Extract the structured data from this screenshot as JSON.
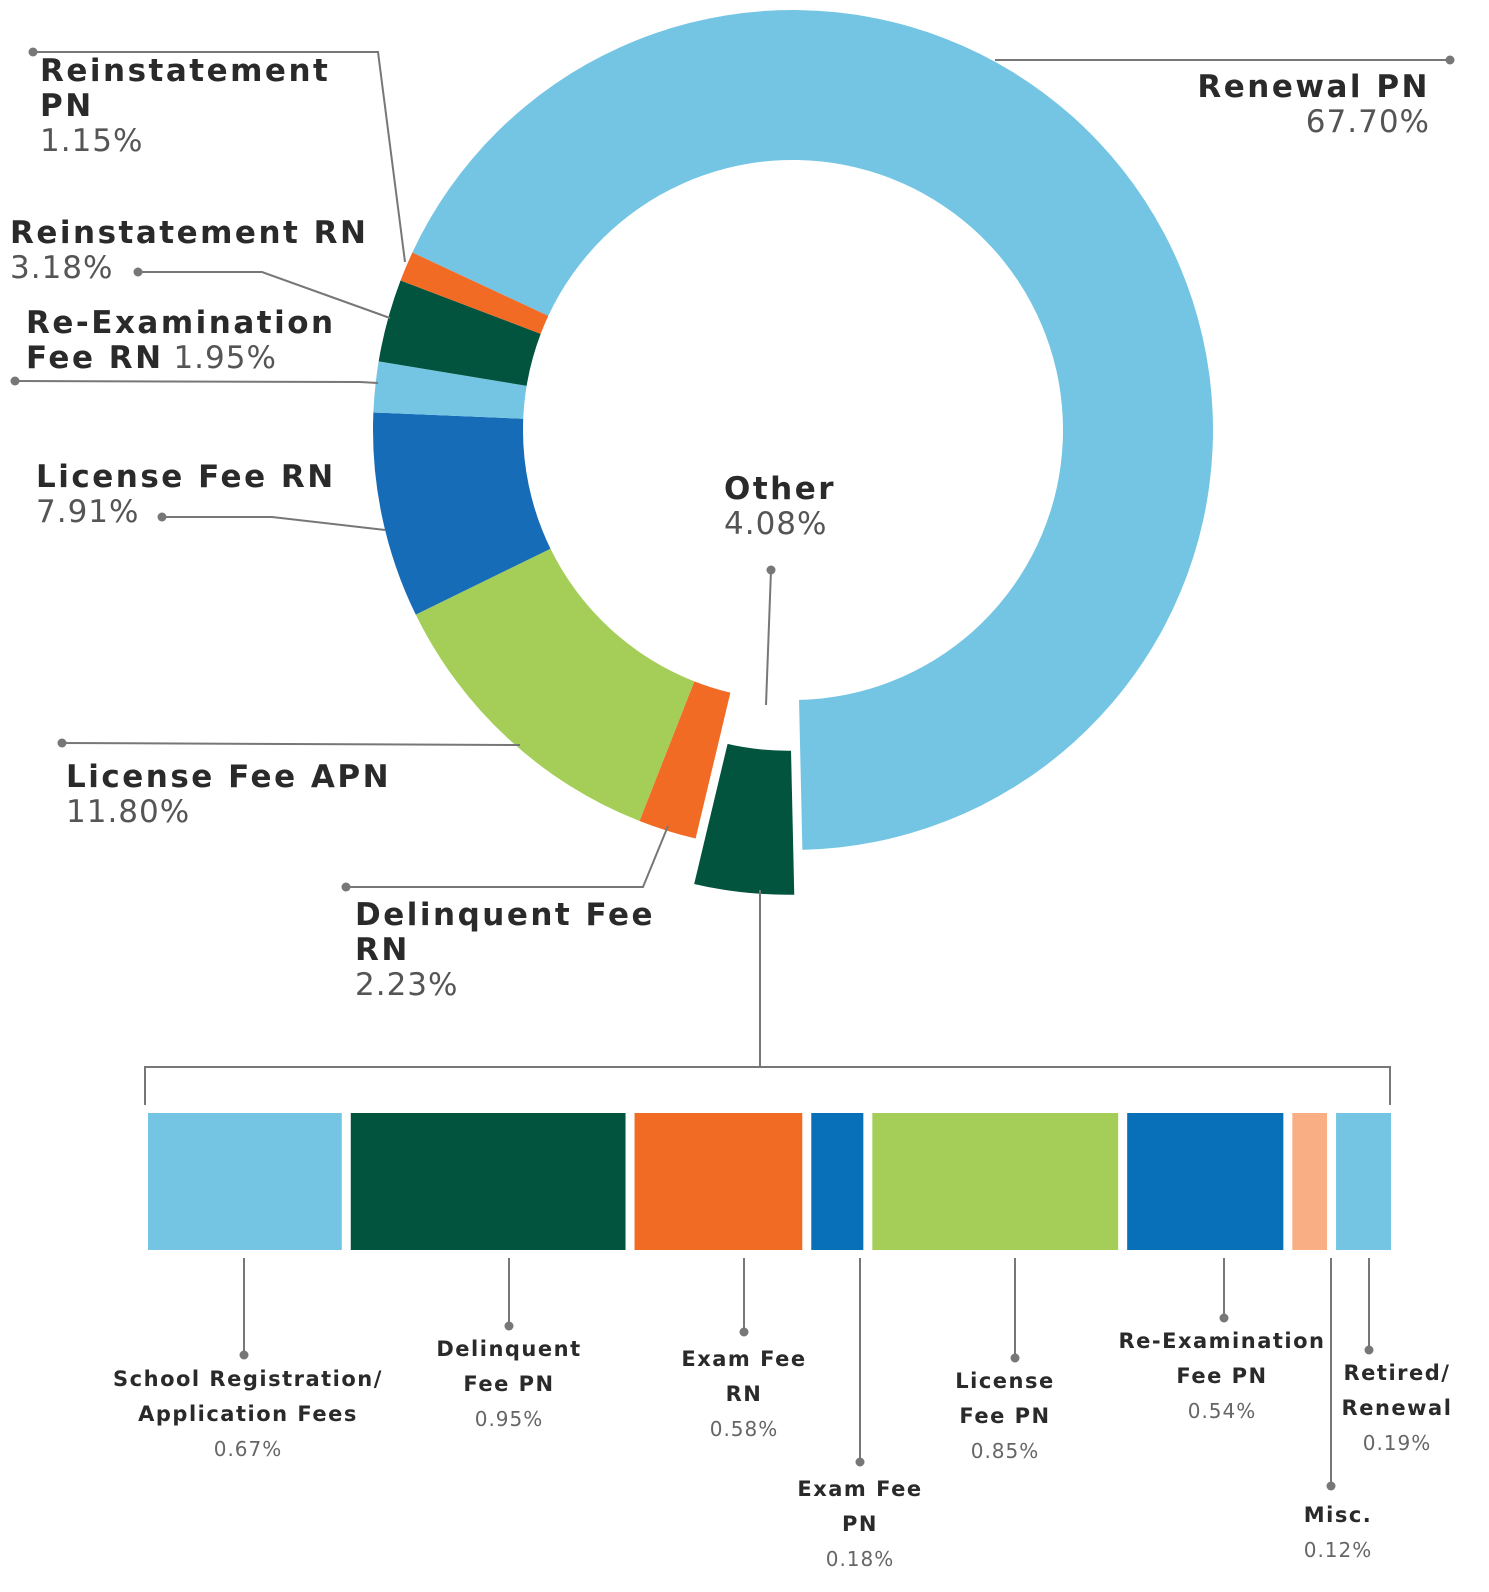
{
  "chart_data": [
    {
      "type": "donut",
      "categories": [
        "Renewal PN",
        "Other",
        "Delinquent Fee RN",
        "License Fee APN",
        "License Fee RN",
        "Re-Examination Fee RN",
        "Reinstatement RN",
        "Reinstatement PN"
      ],
      "values": [
        67.7,
        4.08,
        2.23,
        11.8,
        7.91,
        1.95,
        3.18,
        1.15
      ],
      "value_labels": [
        "67.70%",
        "4.08%",
        "2.23%",
        "11.80%",
        "7.91%",
        "1.95%",
        "3.18%",
        "1.15%"
      ],
      "colors": [
        "#74c5e3",
        "#02543f",
        "#f26b24",
        "#a5ce58",
        "#176cb7",
        "#74c5e3",
        "#02543f",
        "#f26b24"
      ]
    },
    {
      "type": "bar",
      "categories": [
        "School Registration/ Application Fees",
        "Delinquent Fee PN",
        "Exam Fee RN",
        "Exam Fee PN",
        "License Fee PN",
        "Re-Examination Fee PN",
        "Misc.",
        "Retired/ Renewal"
      ],
      "values": [
        0.67,
        0.95,
        0.58,
        0.18,
        0.85,
        0.54,
        0.12,
        0.19
      ],
      "value_labels": [
        "0.67%",
        "0.95%",
        "0.58%",
        "0.18%",
        "0.85%",
        "0.54%",
        "0.12%",
        "0.19%"
      ],
      "colors": [
        "#74c5e3",
        "#02543f",
        "#f26b24",
        "#0870b8",
        "#a5ce58",
        "#0870b8",
        "#f9ae83",
        "#74c5e3"
      ]
    }
  ]
}
